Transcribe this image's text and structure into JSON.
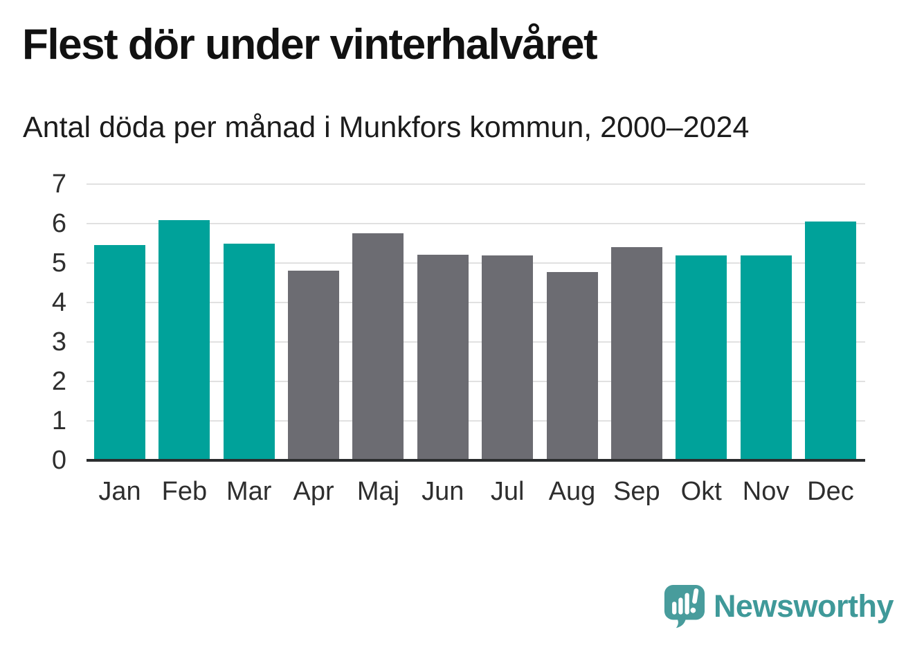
{
  "header": {
    "title": "Flest dör under vinterhalvåret",
    "subtitle": "Antal döda per månad i Munkfors kommun, 2000–2024"
  },
  "chart_data": {
    "type": "bar",
    "title": "Flest dör under vinterhalvåret",
    "subtitle": "Antal döda per månad i Munkfors kommun, 2000–2024",
    "categories": [
      "Jan",
      "Feb",
      "Mar",
      "Apr",
      "Maj",
      "Jun",
      "Jul",
      "Aug",
      "Sep",
      "Okt",
      "Nov",
      "Dec"
    ],
    "values": [
      5.46,
      6.08,
      5.49,
      4.81,
      5.76,
      5.21,
      5.19,
      4.78,
      5.4,
      5.19,
      5.19,
      6.06
    ],
    "bar_colors": [
      "teal",
      "teal",
      "teal",
      "gray",
      "gray",
      "gray",
      "gray",
      "gray",
      "gray",
      "teal",
      "teal",
      "teal"
    ],
    "xlabel": "",
    "ylabel": "",
    "ylim": [
      0,
      7
    ],
    "yticks": [
      0,
      1,
      2,
      3,
      4,
      5,
      6,
      7
    ],
    "grid": true,
    "legend": false,
    "colors": {
      "teal": "#00a29a",
      "gray": "#6c6c72",
      "gridline": "#e1e1e1",
      "axis_line": "#2b2d2e",
      "tick_label": "#2e2e2e"
    }
  },
  "footer": {
    "logo_text": "Newsworthy",
    "logo_color": "#3f9999",
    "logo_icon": "newsworthy-speech-bubble-chart-icon",
    "logo_icon_color": "#489c9c"
  }
}
